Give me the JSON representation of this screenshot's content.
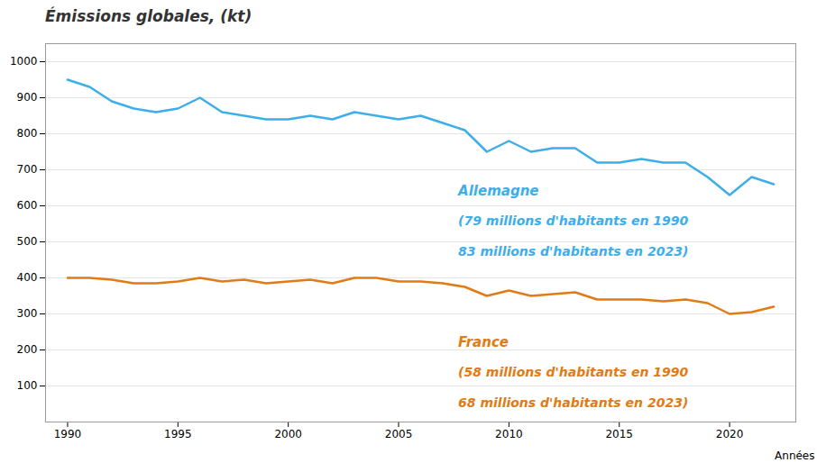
{
  "chart_data": {
    "type": "line",
    "title": "Émissions globales, (kt)",
    "xlabel": "Années",
    "x": [
      1990,
      1991,
      1992,
      1993,
      1994,
      1995,
      1996,
      1997,
      1998,
      1999,
      2000,
      2001,
      2002,
      2003,
      2004,
      2005,
      2006,
      2007,
      2008,
      2009,
      2010,
      2011,
      2012,
      2013,
      2014,
      2015,
      2016,
      2017,
      2018,
      2019,
      2020,
      2021,
      2022
    ],
    "series": [
      {
        "name": "Allemagne",
        "color": "#3daee9",
        "values": [
          950,
          930,
          890,
          870,
          860,
          870,
          900,
          860,
          850,
          840,
          840,
          850,
          840,
          860,
          850,
          840,
          850,
          830,
          810,
          750,
          780,
          750,
          760,
          760,
          720,
          720,
          730,
          720,
          720,
          680,
          630,
          680,
          660
        ]
      },
      {
        "name": "France",
        "color": "#e07b16",
        "values": [
          400,
          400,
          395,
          385,
          385,
          390,
          400,
          390,
          395,
          385,
          390,
          395,
          385,
          400,
          400,
          390,
          390,
          385,
          375,
          350,
          365,
          350,
          355,
          360,
          340,
          340,
          340,
          335,
          340,
          330,
          300,
          305,
          320
        ]
      }
    ],
    "annotations": [
      {
        "text": "(79 millions d'habitants en 1990",
        "color": "#3daee9"
      },
      {
        "text": "83 millions d'habitants en 2023)",
        "color": "#3daee9"
      },
      {
        "text": "(58 millions d'habitants en 1990",
        "color": "#e07b16"
      },
      {
        "text": "68 millions d'habitants en 2023)",
        "color": "#e07b16"
      }
    ],
    "xlim": [
      1989,
      2023
    ],
    "xticks": [
      1990,
      1995,
      2000,
      2005,
      2010,
      2015,
      2020
    ],
    "ylim": [
      0,
      1050
    ],
    "yticks": [
      100,
      200,
      300,
      400,
      500,
      600,
      700,
      800,
      900,
      1000
    ],
    "grid": true
  }
}
